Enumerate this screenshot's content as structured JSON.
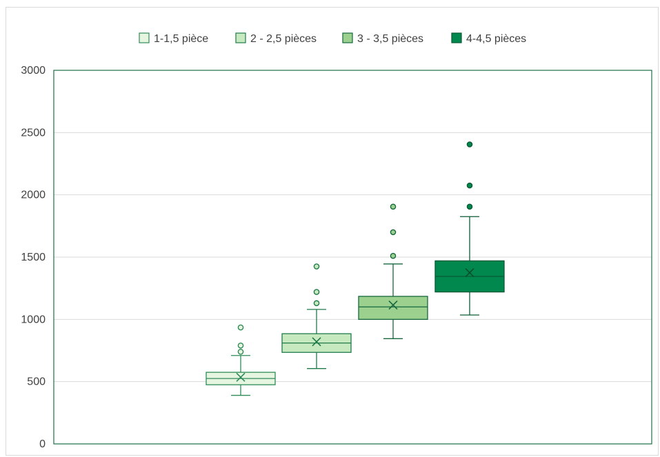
{
  "chart_data": {
    "type": "box",
    "title": "",
    "xlabel": "",
    "ylabel": "",
    "ylim": [
      0,
      3000
    ],
    "yticks": [
      0,
      500,
      1000,
      1500,
      2000,
      2500,
      3000
    ],
    "grid": true,
    "legend_position": "top",
    "series": [
      {
        "name": "1-1,5 pièce",
        "color": "#e5f5e0",
        "stroke": "#2e8b57",
        "min": 390,
        "q1": 475,
        "median": 525,
        "q3": 575,
        "max": 710,
        "mean": 535,
        "outliers": [
          740,
          790,
          935
        ]
      },
      {
        "name": "2 - 2,5 pièces",
        "color": "#c7e9c0",
        "stroke": "#1f7a4a",
        "min": 605,
        "q1": 735,
        "median": 810,
        "q3": 885,
        "max": 1080,
        "mean": 820,
        "outliers": [
          1130,
          1220,
          1425
        ]
      },
      {
        "name": "3 - 3,5 pièces",
        "color": "#9bd08f",
        "stroke": "#16673d",
        "min": 845,
        "q1": 1000,
        "median": 1100,
        "q3": 1185,
        "max": 1445,
        "mean": 1115,
        "outliers": [
          1510,
          1700,
          1905
        ]
      },
      {
        "name": "4-4,5 pièces",
        "color": "#00884f",
        "stroke": "#0b5a34",
        "min": 1035,
        "q1": 1220,
        "median": 1345,
        "q3": 1470,
        "max": 1825,
        "mean": 1375,
        "outliers": [
          1905,
          2075,
          2405
        ]
      }
    ]
  }
}
